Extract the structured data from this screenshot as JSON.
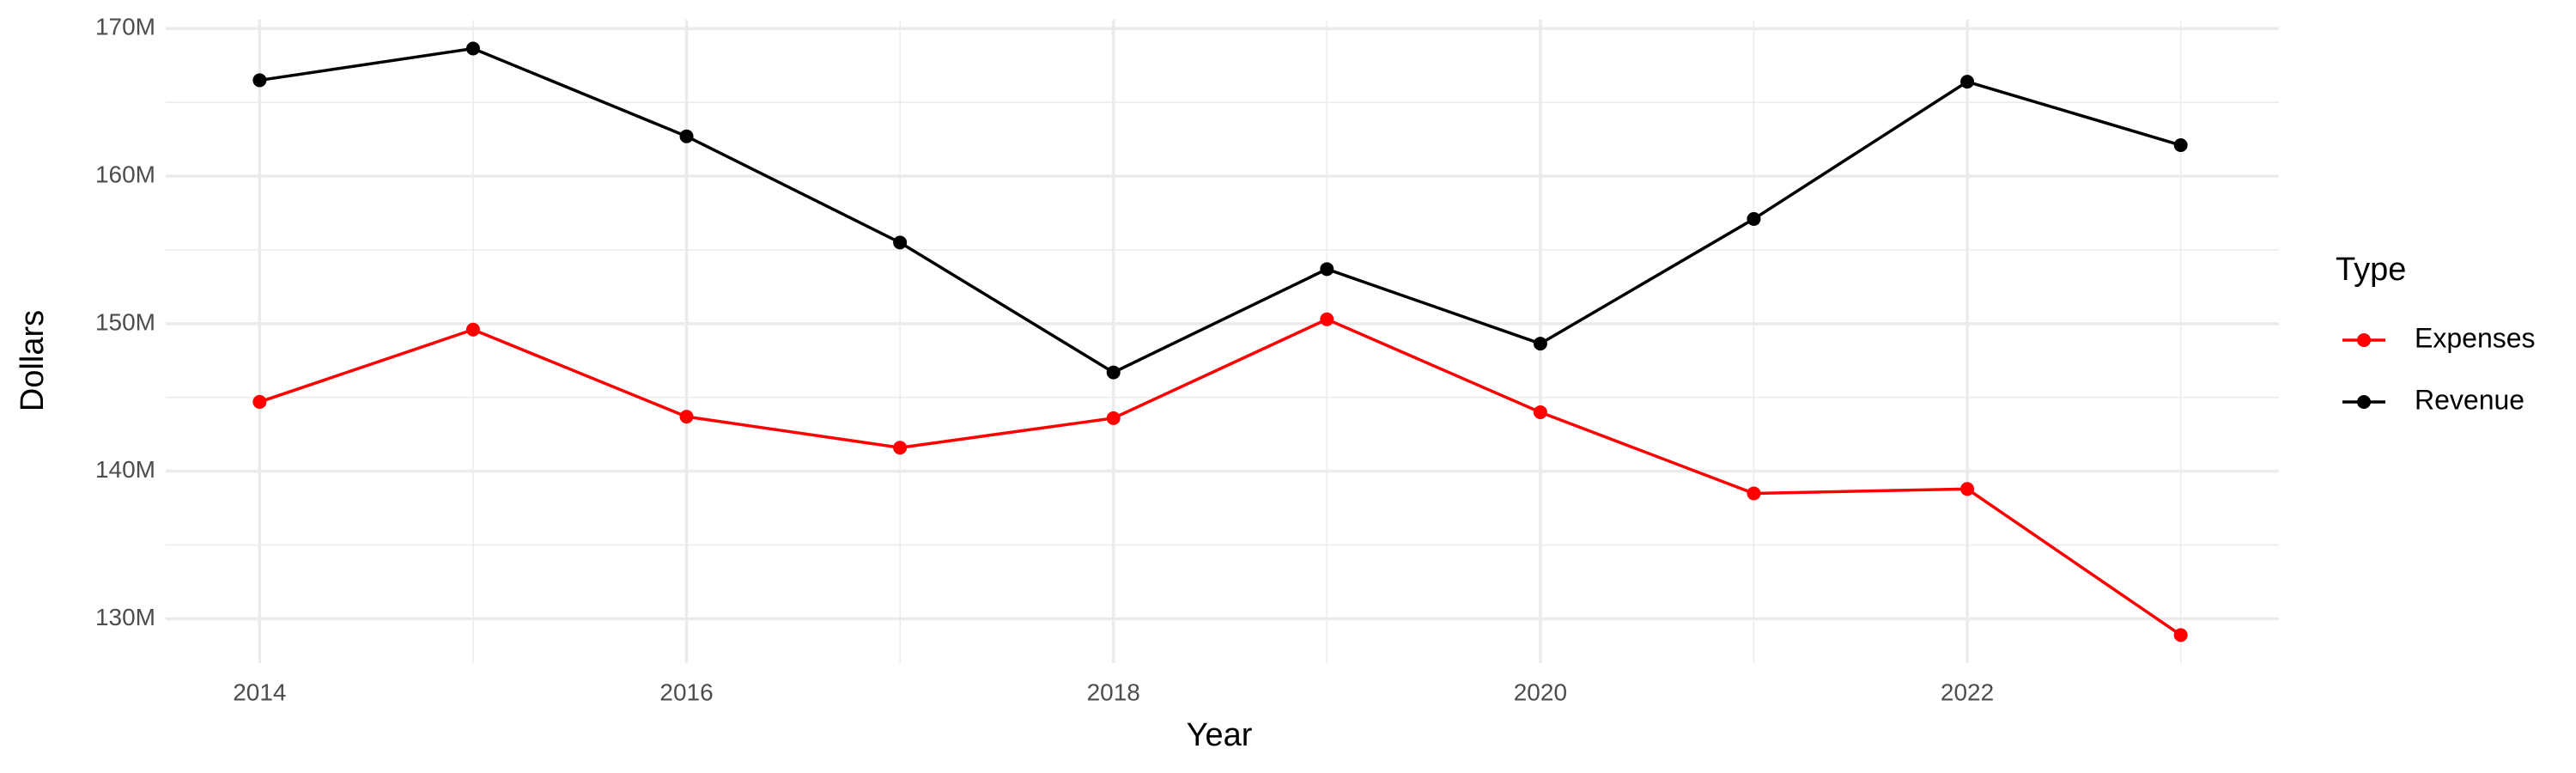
{
  "chart_data": {
    "type": "line",
    "x_label": "Year",
    "y_label": "Dollars",
    "legend_title": "Type",
    "x": [
      2014,
      2015,
      2016,
      2017,
      2018,
      2019,
      2020,
      2021,
      2022,
      2023
    ],
    "series": [
      {
        "name": "Expenses",
        "color": "#ff0000",
        "values": [
          144700000,
          149600000,
          143700000,
          141600000,
          143600000,
          150300000,
          144000000,
          138500000,
          138800000,
          128900000
        ]
      },
      {
        "name": "Revenue",
        "color": "#000000",
        "values": [
          166500000,
          168650000,
          162700000,
          155500000,
          146700000,
          153700000,
          148650000,
          157100000,
          166400000,
          162100000
        ]
      }
    ],
    "xlim": [
      2013.56,
      2023.46
    ],
    "xticks": [
      2014,
      2016,
      2018,
      2020,
      2022
    ],
    "ylim": [
      127000000,
      170600000
    ],
    "yticks": [
      {
        "value": 130000000,
        "label": "130M"
      },
      {
        "value": 140000000,
        "label": "140M"
      },
      {
        "value": 150000000,
        "label": "150M"
      },
      {
        "value": 160000000,
        "label": "160M"
      },
      {
        "value": 170000000,
        "label": "170M"
      }
    ],
    "grid": true,
    "legend_position": "right"
  }
}
